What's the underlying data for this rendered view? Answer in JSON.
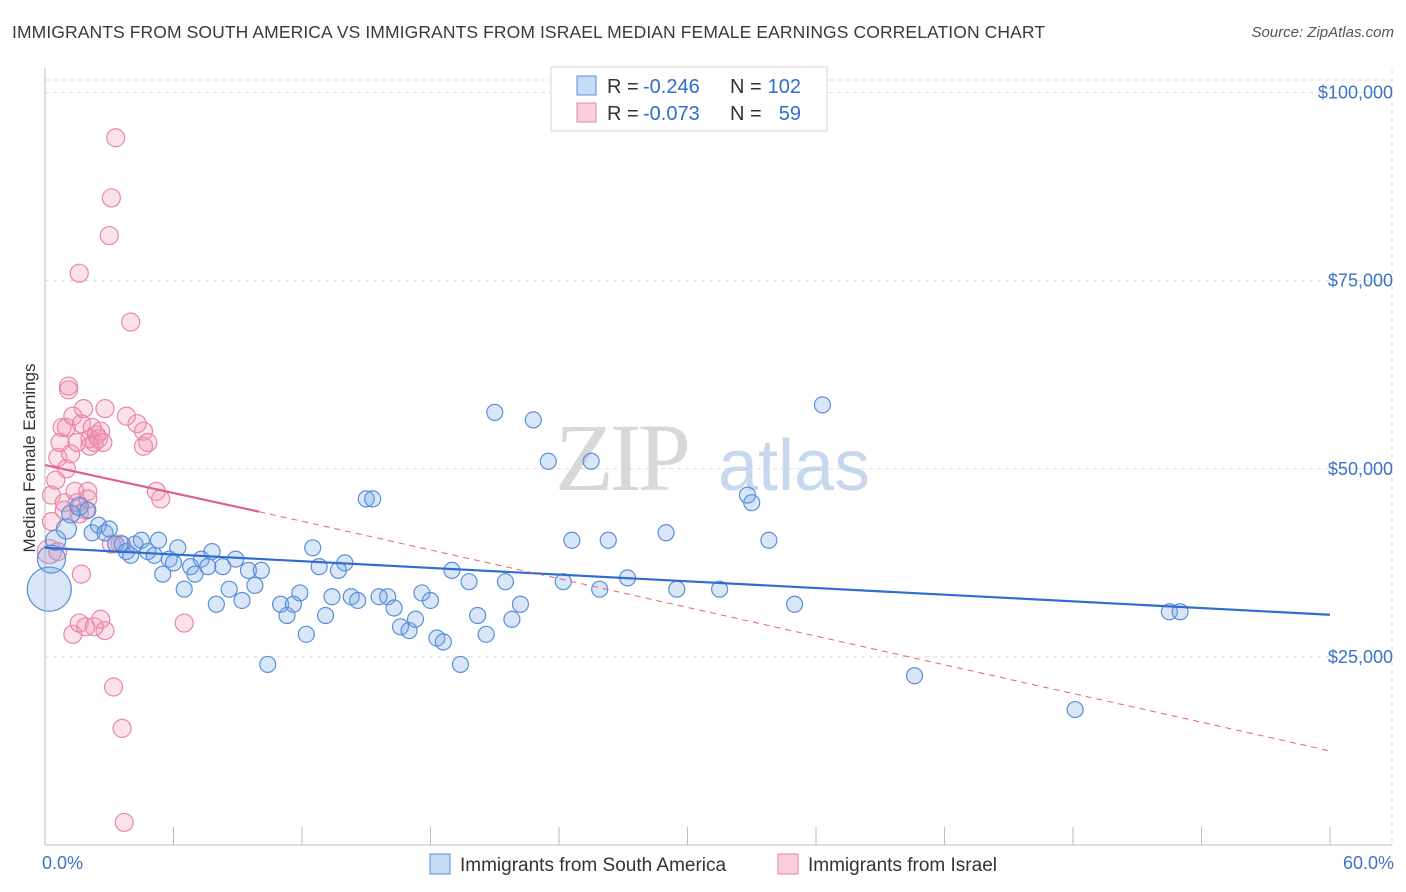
{
  "title": "IMMIGRANTS FROM SOUTH AMERICA VS IMMIGRANTS FROM ISRAEL MEDIAN FEMALE EARNINGS CORRELATION CHART",
  "source": "Source: ZipAtlas.com",
  "watermark": {
    "zip": "ZIP",
    "atlas": "atlas"
  },
  "colors": {
    "blue": "#5a8fd8",
    "blue_fill": "rgba(120,165,230,0.28)",
    "blue_line": "#2f6dcf",
    "pink": "#e887a6",
    "pink_fill": "rgba(240,150,180,0.28)",
    "pink_line": "#e0608a",
    "axis_text": "#3d72c5",
    "grid": "#d9d9d9"
  },
  "legend": {
    "r_label": "R =",
    "n_label": "N =",
    "rows": [
      {
        "series": "blue",
        "r": "-0.246",
        "n": "102"
      },
      {
        "series": "pink",
        "r": "-0.073",
        "n": "59"
      }
    ]
  },
  "bottom_legend": [
    "Immigrants from South America",
    "Immigrants from Israel"
  ],
  "chart_data": {
    "type": "scatter",
    "title": "IMMIGRANTS FROM SOUTH AMERICA VS IMMIGRANTS FROM ISRAEL MEDIAN FEMALE EARNINGS CORRELATION CHART",
    "xlabel": "",
    "ylabel": "Median Female Earnings",
    "xlim": [
      0,
      60
    ],
    "ylim": [
      0,
      105000
    ],
    "x_tick_labels": [
      "0.0%",
      "60.0%"
    ],
    "y_ticks": [
      25000,
      50000,
      75000,
      100000
    ],
    "y_tick_labels": [
      "$25,000",
      "$50,000",
      "$75,000",
      "$100,000"
    ],
    "grid": true,
    "series": [
      {
        "name": "Immigrants from South America",
        "color": "blue",
        "trend": {
          "x": [
            0,
            60
          ],
          "y": [
            39500,
            30600
          ],
          "style": "solid"
        },
        "points": [
          [
            0.2,
            34000,
            22
          ],
          [
            0.3,
            38000,
            14
          ],
          [
            0.5,
            40500,
            10
          ],
          [
            1.0,
            42000,
            10
          ],
          [
            1.2,
            44000,
            9
          ],
          [
            1.6,
            45000,
            9
          ],
          [
            2.0,
            44500,
            8
          ],
          [
            2.2,
            41500,
            8
          ],
          [
            2.5,
            42500,
            8
          ],
          [
            2.8,
            41500,
            8
          ],
          [
            3.0,
            42000,
            8
          ],
          [
            3.3,
            40000,
            8
          ],
          [
            3.6,
            40000,
            8
          ],
          [
            3.8,
            39000,
            8
          ],
          [
            4.0,
            38500,
            8
          ],
          [
            4.2,
            40000,
            8
          ],
          [
            4.5,
            40500,
            8
          ],
          [
            4.8,
            39000,
            8
          ],
          [
            5.1,
            38500,
            8
          ],
          [
            5.3,
            40500,
            8
          ],
          [
            5.5,
            36000,
            8
          ],
          [
            5.8,
            38000,
            8
          ],
          [
            6.0,
            37500,
            8
          ],
          [
            6.2,
            39500,
            8
          ],
          [
            6.5,
            34000,
            8
          ],
          [
            6.8,
            37000,
            8
          ],
          [
            7.0,
            36000,
            8
          ],
          [
            7.3,
            38000,
            8
          ],
          [
            7.6,
            37000,
            8
          ],
          [
            7.8,
            39000,
            8
          ],
          [
            8.0,
            32000,
            8
          ],
          [
            8.3,
            37000,
            8
          ],
          [
            8.6,
            34000,
            8
          ],
          [
            8.9,
            38000,
            8
          ],
          [
            9.2,
            32500,
            8
          ],
          [
            9.5,
            36500,
            8
          ],
          [
            9.8,
            34500,
            8
          ],
          [
            10.1,
            36500,
            8
          ],
          [
            10.4,
            24000,
            8
          ],
          [
            11.0,
            32000,
            8
          ],
          [
            11.3,
            30500,
            8
          ],
          [
            11.6,
            32000,
            8
          ],
          [
            11.9,
            33500,
            8
          ],
          [
            12.2,
            28000,
            8
          ],
          [
            12.5,
            39500,
            8
          ],
          [
            12.8,
            37000,
            8
          ],
          [
            13.1,
            30500,
            8
          ],
          [
            13.4,
            33000,
            8
          ],
          [
            13.7,
            36500,
            8
          ],
          [
            14.0,
            37500,
            8
          ],
          [
            14.3,
            33000,
            8
          ],
          [
            14.6,
            32500,
            8
          ],
          [
            15.0,
            46000,
            8
          ],
          [
            15.3,
            46000,
            8
          ],
          [
            15.6,
            33000,
            8
          ],
          [
            16.0,
            33000,
            8
          ],
          [
            16.3,
            31500,
            8
          ],
          [
            16.6,
            29000,
            8
          ],
          [
            17.0,
            28500,
            8
          ],
          [
            17.3,
            30000,
            8
          ],
          [
            17.6,
            33500,
            8
          ],
          [
            18.0,
            32500,
            8
          ],
          [
            18.3,
            27500,
            8
          ],
          [
            18.6,
            27000,
            8
          ],
          [
            19.0,
            36500,
            8
          ],
          [
            19.4,
            24000,
            8
          ],
          [
            19.8,
            35000,
            8
          ],
          [
            20.2,
            30500,
            8
          ],
          [
            20.6,
            28000,
            8
          ],
          [
            21.0,
            57500,
            8
          ],
          [
            21.5,
            35000,
            8
          ],
          [
            21.8,
            30000,
            8
          ],
          [
            22.2,
            32000,
            8
          ],
          [
            22.8,
            56500,
            8
          ],
          [
            23.5,
            51000,
            8
          ],
          [
            24.2,
            35000,
            8
          ],
          [
            24.6,
            40500,
            8
          ],
          [
            25.5,
            51000,
            8
          ],
          [
            25.9,
            34000,
            8
          ],
          [
            26.3,
            40500,
            8
          ],
          [
            27.2,
            35500,
            8
          ],
          [
            29.0,
            41500,
            8
          ],
          [
            29.5,
            34000,
            8
          ],
          [
            31.5,
            34000,
            8
          ],
          [
            32.8,
            46500,
            8
          ],
          [
            33.0,
            45500,
            8
          ],
          [
            33.8,
            40500,
            8
          ],
          [
            35.0,
            32000,
            8
          ],
          [
            36.3,
            58500,
            8
          ],
          [
            40.6,
            22500,
            8
          ],
          [
            48.1,
            18000,
            8
          ],
          [
            52.5,
            31000,
            8
          ],
          [
            53.0,
            31000,
            8
          ]
        ]
      },
      {
        "name": "Immigrants from Israel",
        "color": "pink",
        "trend": {
          "x": [
            0,
            10
          ],
          "y": [
            50500,
            44300
          ],
          "style": "solid",
          "dashed_extension": {
            "x": [
              10,
              60
            ],
            "y": [
              44300,
              12500
            ]
          }
        },
        "points": [
          [
            0.2,
            39000,
            12
          ],
          [
            0.3,
            43000,
            9
          ],
          [
            0.3,
            46500,
            9
          ],
          [
            0.5,
            48500,
            9
          ],
          [
            0.6,
            51500,
            9
          ],
          [
            0.7,
            53500,
            9
          ],
          [
            0.8,
            55500,
            9
          ],
          [
            0.9,
            45500,
            9
          ],
          [
            1.0,
            50000,
            9
          ],
          [
            1.0,
            55500,
            9
          ],
          [
            1.1,
            60500,
            9
          ],
          [
            1.1,
            61000,
            9
          ],
          [
            1.2,
            52000,
            9
          ],
          [
            1.3,
            57000,
            9
          ],
          [
            1.4,
            47000,
            9
          ],
          [
            1.5,
            45500,
            9
          ],
          [
            1.5,
            53500,
            9
          ],
          [
            1.6,
            44000,
            9
          ],
          [
            1.7,
            56000,
            9
          ],
          [
            1.8,
            58000,
            9
          ],
          [
            1.9,
            44500,
            9
          ],
          [
            2.0,
            47000,
            9
          ],
          [
            2.1,
            54000,
            9
          ],
          [
            2.2,
            55500,
            9
          ],
          [
            2.3,
            53500,
            9
          ],
          [
            2.4,
            54500,
            9
          ],
          [
            2.5,
            54000,
            9
          ],
          [
            2.6,
            55000,
            9
          ],
          [
            2.7,
            53500,
            9
          ],
          [
            2.8,
            58000,
            9
          ],
          [
            3.0,
            81000,
            9
          ],
          [
            3.1,
            86000,
            9
          ],
          [
            3.3,
            94000,
            9
          ],
          [
            3.5,
            40000,
            9
          ],
          [
            3.8,
            57000,
            9
          ],
          [
            4.0,
            69500,
            9
          ],
          [
            4.3,
            56000,
            9
          ],
          [
            4.6,
            53000,
            9
          ],
          [
            4.6,
            55000,
            9
          ],
          [
            4.8,
            53500,
            9
          ],
          [
            5.2,
            47000,
            9
          ],
          [
            5.4,
            46000,
            9
          ],
          [
            1.6,
            76000,
            9
          ],
          [
            1.3,
            28000,
            9
          ],
          [
            1.6,
            29500,
            9
          ],
          [
            1.9,
            29000,
            9
          ],
          [
            2.6,
            30000,
            9
          ],
          [
            2.8,
            28500,
            9
          ],
          [
            3.2,
            21000,
            9
          ],
          [
            3.6,
            15500,
            9
          ],
          [
            3.7,
            3000,
            9
          ],
          [
            6.5,
            29500,
            9
          ],
          [
            1.7,
            36000,
            9
          ],
          [
            2.3,
            29000,
            9
          ],
          [
            0.6,
            39000,
            9
          ],
          [
            0.9,
            44500,
            9
          ],
          [
            2.1,
            53000,
            9
          ],
          [
            3.1,
            40000,
            9
          ],
          [
            2.0,
            46000,
            9
          ]
        ]
      }
    ]
  }
}
